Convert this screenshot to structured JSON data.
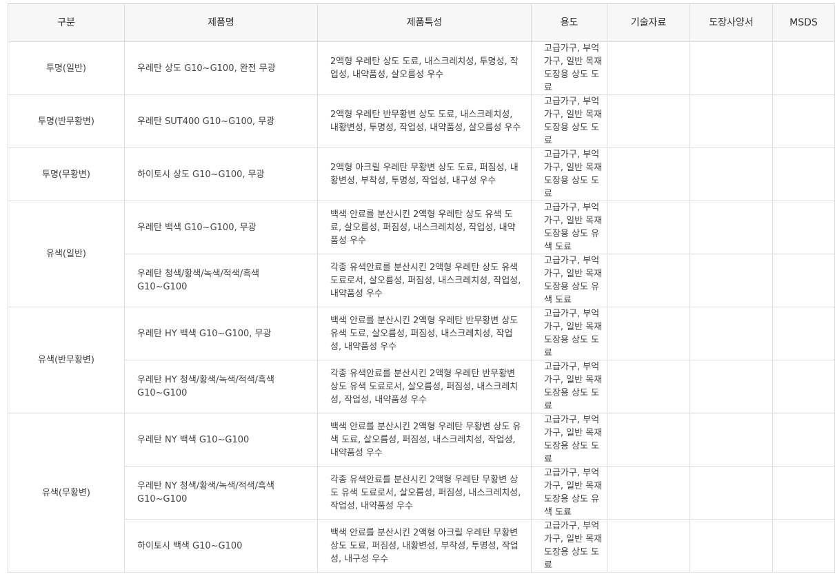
{
  "header": [
    "구분",
    "제품명",
    "제품특성",
    "용도",
    "기술자료",
    "도장사양서",
    "MSDS"
  ],
  "groups": [
    {
      "label": "투명(일반)",
      "items": [
        {
          "name": "우레탄 상도 G10~G100, 완전 무광",
          "features": "2액형 우레탄 상도 도료, 내스크레치성, 투명성, 작업성, 내약품성, 살오름성 우수",
          "usage": "고급가구, 부억가구, 일반 목재 도장용 상도 도료"
        }
      ]
    },
    {
      "label": "투명(반무황변)",
      "items": [
        {
          "name": "우레탄 SUT400 G10~G100, 무광",
          "features": "2액형 우레탄 반무황변 상도 도료, 내스크레치성, 내황변성, 투명성, 작업성, 내약품성, 살오름성 우수",
          "usage": "고급가구, 부억가구, 일반 목재 도장용 상도 도료"
        }
      ]
    },
    {
      "label": "투명(무황변)",
      "items": [
        {
          "name": "하이토시 상도 G10~G100, 무광",
          "features": "2액형 아크릴 우레탄 무황변 상도 도료, 퍼짐성, 내황변성, 부착성, 투명성, 작업성, 내구성 우수",
          "usage": "고급가구, 부억가구, 일반 목재 도장용 상도 도료"
        }
      ]
    },
    {
      "label": "유색(일반)",
      "items": [
        {
          "name": "우레탄 백색 G10~G100, 무광",
          "features": "백색 안료를 분산시킨 2액형 우레탄 상도 유색 도료, 살오름성, 퍼짐성, 내스크레치성, 작업성, 내약품성 우수",
          "usage": "고급가구, 부억가구, 일반 목재 도장용 상도 유색 도료"
        },
        {
          "name": "우레탄 청색/황색/녹색/적색/흑색 G10~G100",
          "features": "각종 유색안료를 분산시킨 2액형 우레탄 상도 유색 도료로서, 살오름성, 퍼짐성, 내스크레치성, 작업성, 내약품성 우수",
          "usage": "고급가구, 부억가구, 일반 목재 도장용 상도 유색 도료"
        }
      ]
    },
    {
      "label": "유색(반무황변)",
      "items": [
        {
          "name": "우레탄 HY 백색 G10~G100, 무광",
          "features": "백색 안료를 분산시킨 2액형 우레탄 반무황변 상도 유색 도료, 살오름성, 퍼짐성, 내스크레치성, 작업성, 내약품성 우수",
          "usage": "고급가구, 부억가구, 일반 목재 도장용 상도 도료"
        },
        {
          "name": "우레탄 HY 청색/황색/녹색/적색/흑색 G10~G100",
          "features": "각종 유색안료를 분산시킨 2액형 우레탄 반무황변 상도 유색 도료로서, 살오름성, 퍼짐성, 내스크레치성, 작업성, 내약품성 우수",
          "usage": "고급가구, 부억가구, 일반 목재 도장용 상도 도료"
        }
      ]
    },
    {
      "label": "유색(무황변)",
      "items": [
        {
          "name": "우레탄 NY 백색 G10~G100",
          "features": "백색 안료를 분산시킨 2액형 우레탄 무황변 상도 유색 도료, 살오름성, 퍼짐성, 내스크레치성, 작업성, 내약품성 우수",
          "usage": "고급가구, 부억가구, 일반 목재 도장용 상도 도료"
        },
        {
          "name": "우레탄 NY 청색/황색/녹색/적색/흑색 G10~G100",
          "features": "각종 유색안료를 분산시킨 2액형 우레탄 무황변 상도 유색 도료로서, 살오름성, 퍼짐성, 내스크레치성, 작업성, 내약품성 우수",
          "usage": "고급가구, 부억가구, 일반 목재 도장용 상도 유색 도료"
        },
        {
          "name": "하이토시 백색 G10~G100",
          "features": "백색 안료를 분산시킨 2액형 아크릴 우레탄 무황변 상도 도료, 퍼짐성, 내황변성, 부착성, 투명성, 작업성, 내구성 우수",
          "usage": "고급가구, 부억가구, 일반 목재 도장용 상도 도료"
        }
      ]
    }
  ]
}
